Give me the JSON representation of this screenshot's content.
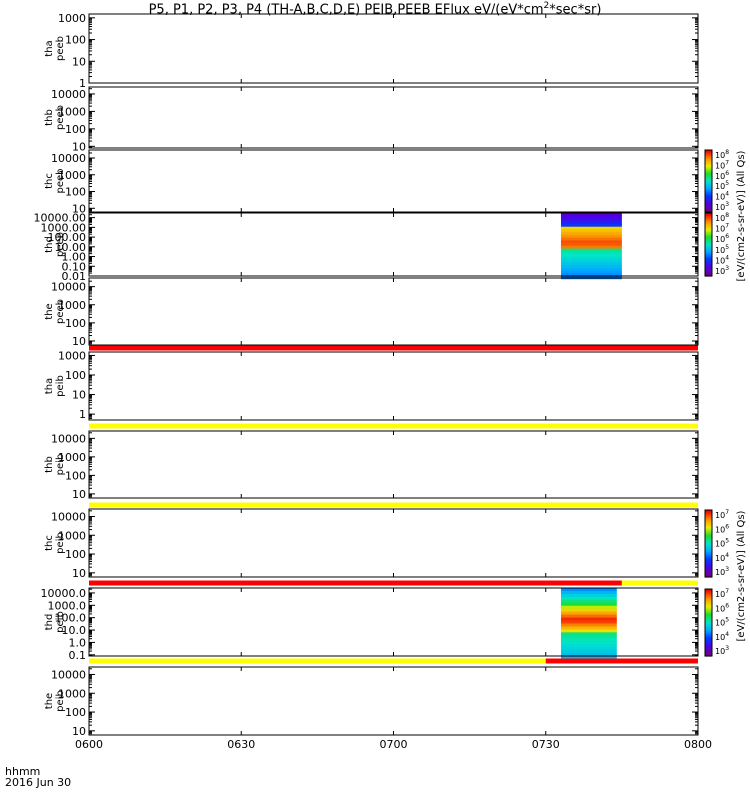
{
  "title": {
    "main": "P5, P1, P2, P3, P4 (TH-A,B,C,D,E) PEIB,PEEB EFlux eV/(eV*cm",
    "sup": "2",
    "tail": "*sec*sr)"
  },
  "footer": {
    "line1": "hhmm",
    "line2": "2016 Jun 30"
  },
  "colors": {
    "flag_red": "#ff0000",
    "flag_yellow": "#ffff00",
    "frame": "#000000"
  },
  "chart_data": {
    "type": "heatmap",
    "x_ticks": [
      "0600",
      "0630",
      "0700",
      "0730",
      "0800"
    ],
    "x_range": [
      "0600",
      "0800"
    ],
    "colorbar_labels": {
      "peeb": "[eV/(cm2-s-sr-eV)] (All Qs)",
      "peib": "[eV/(cm2-s-sr-eV)] (All Qs)"
    },
    "colorbar_ticks": {
      "peeb": [
        "10",
        "10",
        "10",
        "10",
        "10",
        "10"
      ],
      "peeb_exp": [
        "8",
        "7",
        "6",
        "5",
        "4",
        "3"
      ],
      "peib": [
        "10",
        "10",
        "10",
        "10",
        "10"
      ],
      "peib_exp": [
        "7",
        "6",
        "5",
        "4",
        "3"
      ]
    },
    "panels": [
      {
        "label": [
          "tha",
          "peeb"
        ],
        "yticks": [
          "1000",
          "100",
          "10",
          "1"
        ],
        "log_range": [
          1,
          1500
        ],
        "has_data": false
      },
      {
        "label": [
          "thb",
          "peeb"
        ],
        "yticks": [
          "10000",
          "1000",
          "100",
          "10"
        ],
        "log_range": [
          8,
          25000
        ],
        "has_data": false
      },
      {
        "label": [
          "thc",
          "peeb"
        ],
        "yticks": [
          "10000",
          "1000",
          "100",
          "10"
        ],
        "log_range": [
          6,
          30000
        ],
        "has_data": false
      },
      {
        "label": [
          "thd",
          "peeb"
        ],
        "yticks": [
          "10000.00",
          "1000.00",
          "100.00",
          "10.00",
          "1.00",
          "0.10",
          "0.01"
        ],
        "log_range": [
          0.01,
          30000
        ],
        "has_data": true,
        "data_x_range": [
          "0733",
          "0745"
        ]
      },
      {
        "label": [
          "the",
          "peeb"
        ],
        "yticks": [
          "10000",
          "1000",
          "100",
          "10"
        ],
        "log_range": [
          6,
          30000
        ],
        "has_data": false
      },
      {
        "label": [
          "tha",
          "peib"
        ],
        "yticks": [
          "1000",
          "100",
          "10",
          "1"
        ],
        "log_range": [
          0.5,
          1500
        ],
        "has_data": false
      },
      {
        "label": [
          "thb",
          "peib"
        ],
        "yticks": [
          "10000",
          "1000",
          "100",
          "10"
        ],
        "log_range": [
          6,
          25000
        ],
        "has_data": false
      },
      {
        "label": [
          "thc",
          "peib"
        ],
        "yticks": [
          "10000",
          "1000",
          "100",
          "10"
        ],
        "log_range": [
          6,
          25000
        ],
        "has_data": false
      },
      {
        "label": [
          "thd",
          "peib"
        ],
        "yticks": [
          "10000.0",
          "1000.0",
          "100.0",
          "10.0",
          "1.0",
          "0.1"
        ],
        "log_range": [
          0.08,
          25000
        ],
        "has_data": true,
        "data_x_range": [
          "0733",
          "0744"
        ]
      },
      {
        "label": [
          "the",
          "peib"
        ],
        "yticks": [
          "10000",
          "1000",
          "100",
          "10"
        ],
        "log_range": [
          6,
          25000
        ],
        "has_data": false
      }
    ],
    "flag_bars": [
      {
        "after_panel": 5,
        "segments": [
          {
            "from": "0600",
            "to": "0800",
            "color": "red"
          }
        ]
      },
      {
        "after_panel": 6,
        "segments": [
          {
            "from": "0600",
            "to": "0800",
            "color": "yellow"
          }
        ]
      },
      {
        "after_panel": 7,
        "segments": [
          {
            "from": "0600",
            "to": "0800",
            "color": "yellow"
          }
        ]
      },
      {
        "after_panel": 8,
        "segments": [
          {
            "from": "0600",
            "to": "0745",
            "color": "red"
          },
          {
            "from": "0745",
            "to": "0800",
            "color": "yellow"
          }
        ]
      },
      {
        "after_panel": 9,
        "segments": [
          {
            "from": "0600",
            "to": "0730",
            "color": "yellow"
          },
          {
            "from": "0730",
            "to": "0800",
            "color": "red"
          }
        ]
      }
    ]
  }
}
